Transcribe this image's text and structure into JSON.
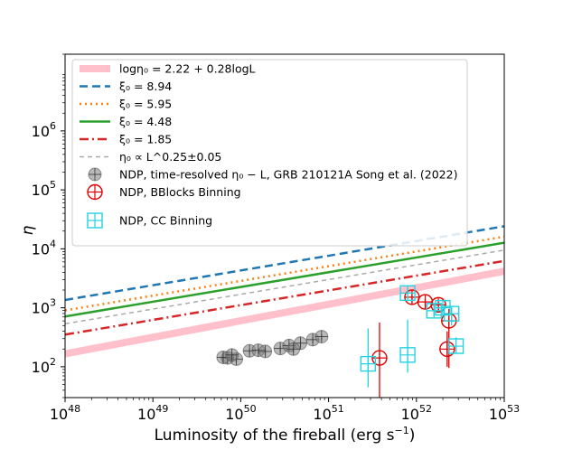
{
  "chart_data": {
    "type": "scatter",
    "xscale": "log",
    "yscale": "log",
    "xlim_exp": [
      48,
      53
    ],
    "ylim": [
      30,
      20000000
    ],
    "xlabel": "Luminosity of the fireball (erg s",
    "xlabel_sup": "−1",
    "xlabel_end": ")",
    "ylabel": "η",
    "x_ticks": [
      {
        "base": "10",
        "exp": "48"
      },
      {
        "base": "10",
        "exp": "49"
      },
      {
        "base": "10",
        "exp": "50"
      },
      {
        "base": "10",
        "exp": "51"
      },
      {
        "base": "10",
        "exp": "52"
      },
      {
        "base": "10",
        "exp": "53"
      }
    ],
    "y_ticks": [
      {
        "base": "10",
        "exp": "2",
        "log": 2
      },
      {
        "base": "10",
        "exp": "3",
        "log": 3
      },
      {
        "base": "10",
        "exp": "4",
        "log": 4
      },
      {
        "base": "10",
        "exp": "5",
        "log": 5
      },
      {
        "base": "10",
        "exp": "6",
        "log": 6
      }
    ],
    "lines": [
      {
        "id": "fit",
        "label": "logη₀ = 2.22 + 0.28logL",
        "color": "#ffc0cb",
        "dash": "",
        "width": 8,
        "intercept": 2.22,
        "slope": 0.28
      },
      {
        "id": "xi894",
        "label": "ξ₀ = 8.94",
        "color": "#1f77b4",
        "dash": "9 5",
        "width": 2.5,
        "intercept": 3.133,
        "slope": 0.25
      },
      {
        "id": "xi595",
        "label": "ξ₀ = 5.95",
        "color": "#ff7f0e",
        "dash": "2 4",
        "width": 2.5,
        "intercept": 2.956,
        "slope": 0.25
      },
      {
        "id": "xi448",
        "label": "ξ₀ = 4.48",
        "color": "#2ca02c",
        "dash": "",
        "width": 2.5,
        "intercept": 2.853,
        "slope": 0.25
      },
      {
        "id": "xi185",
        "label": "ξ₀ = 1.85",
        "color": "#d62728",
        "dash": "10 4 2 4",
        "width": 2.5,
        "intercept": 2.545,
        "slope": 0.25
      },
      {
        "id": "prop",
        "label": "η₀ ∝ L^0.25±0.05",
        "color": "#aaaaaa",
        "dash": "5 4",
        "width": 1.5,
        "intercept": 2.729,
        "slope": 0.25
      }
    ],
    "series": [
      {
        "name": "NDP, time-resolved η₀ − L, GRB 210121A Song et al. (2022)",
        "marker": "grey-circle",
        "points": [
          [
            49.85,
            2.15,
            0.04,
            0.06
          ],
          [
            49.95,
            2.13,
            0.04,
            0.06
          ],
          [
            49.8,
            2.16,
            0.04,
            0.06
          ],
          [
            49.9,
            2.2,
            0.04,
            0.06
          ],
          [
            50.1,
            2.27,
            0.04,
            0.06
          ],
          [
            50.2,
            2.28,
            0.04,
            0.06
          ],
          [
            50.28,
            2.26,
            0.04,
            0.06
          ],
          [
            50.45,
            2.31,
            0.04,
            0.06
          ],
          [
            50.55,
            2.36,
            0.04,
            0.06
          ],
          [
            50.68,
            2.4,
            0.04,
            0.06
          ],
          [
            50.6,
            2.3,
            0.04,
            0.06
          ],
          [
            50.82,
            2.46,
            0.04,
            0.06
          ],
          [
            50.92,
            2.51,
            0.04,
            0.06
          ]
        ]
      },
      {
        "name": "NDP, BBlocks Binning",
        "marker": "red-circle-plus",
        "points": [
          [
            51.58,
            2.15,
            0.6,
            0.75
          ],
          [
            51.95,
            3.18,
            0.05,
            0.1
          ],
          [
            52.1,
            3.1,
            0.05,
            0.1
          ],
          [
            52.25,
            3.05,
            0.05,
            0.1
          ],
          [
            52.37,
            2.78,
            0.2,
            0.8
          ],
          [
            52.35,
            2.3,
            0.3,
            0.3
          ]
        ]
      },
      {
        "name": "NDP, CC Binning",
        "marker": "cyan-square-plus",
        "points": [
          [
            51.45,
            2.05,
            0.6,
            0.4
          ],
          [
            51.9,
            2.2,
            0.6,
            0.3
          ],
          [
            51.9,
            3.25,
            0.08,
            0.1
          ],
          [
            52.2,
            2.95,
            0.1,
            0.1
          ],
          [
            52.3,
            3.0,
            0.05,
            0.1
          ],
          [
            52.4,
            2.9,
            0.1,
            0.2
          ],
          [
            52.45,
            2.35,
            0.15,
            0.1
          ]
        ]
      }
    ],
    "legend": {
      "position": "upper-left",
      "entries": [
        {
          "id": "fit",
          "text": "logη₀ = 2.22 + 0.28logL"
        },
        {
          "id": "xi894",
          "text": "ξ₀ = 8.94"
        },
        {
          "id": "xi595",
          "text": "ξ₀ = 5.95"
        },
        {
          "id": "xi448",
          "text": "ξ₀ = 4.48"
        },
        {
          "id": "xi185",
          "text": "ξ₀ = 1.85"
        },
        {
          "id": "prop",
          "text": "η₀ ∝ L^0.25±0.05"
        },
        {
          "id": "grey",
          "text": "NDP, time-resolved η₀ − L, GRB 210121A Song et al. (2022)"
        },
        {
          "id": "red",
          "text": "NDP, BBlocks Binning"
        },
        {
          "id": "cyan",
          "text": "NDP, CC Binning"
        }
      ]
    },
    "grid": false
  }
}
